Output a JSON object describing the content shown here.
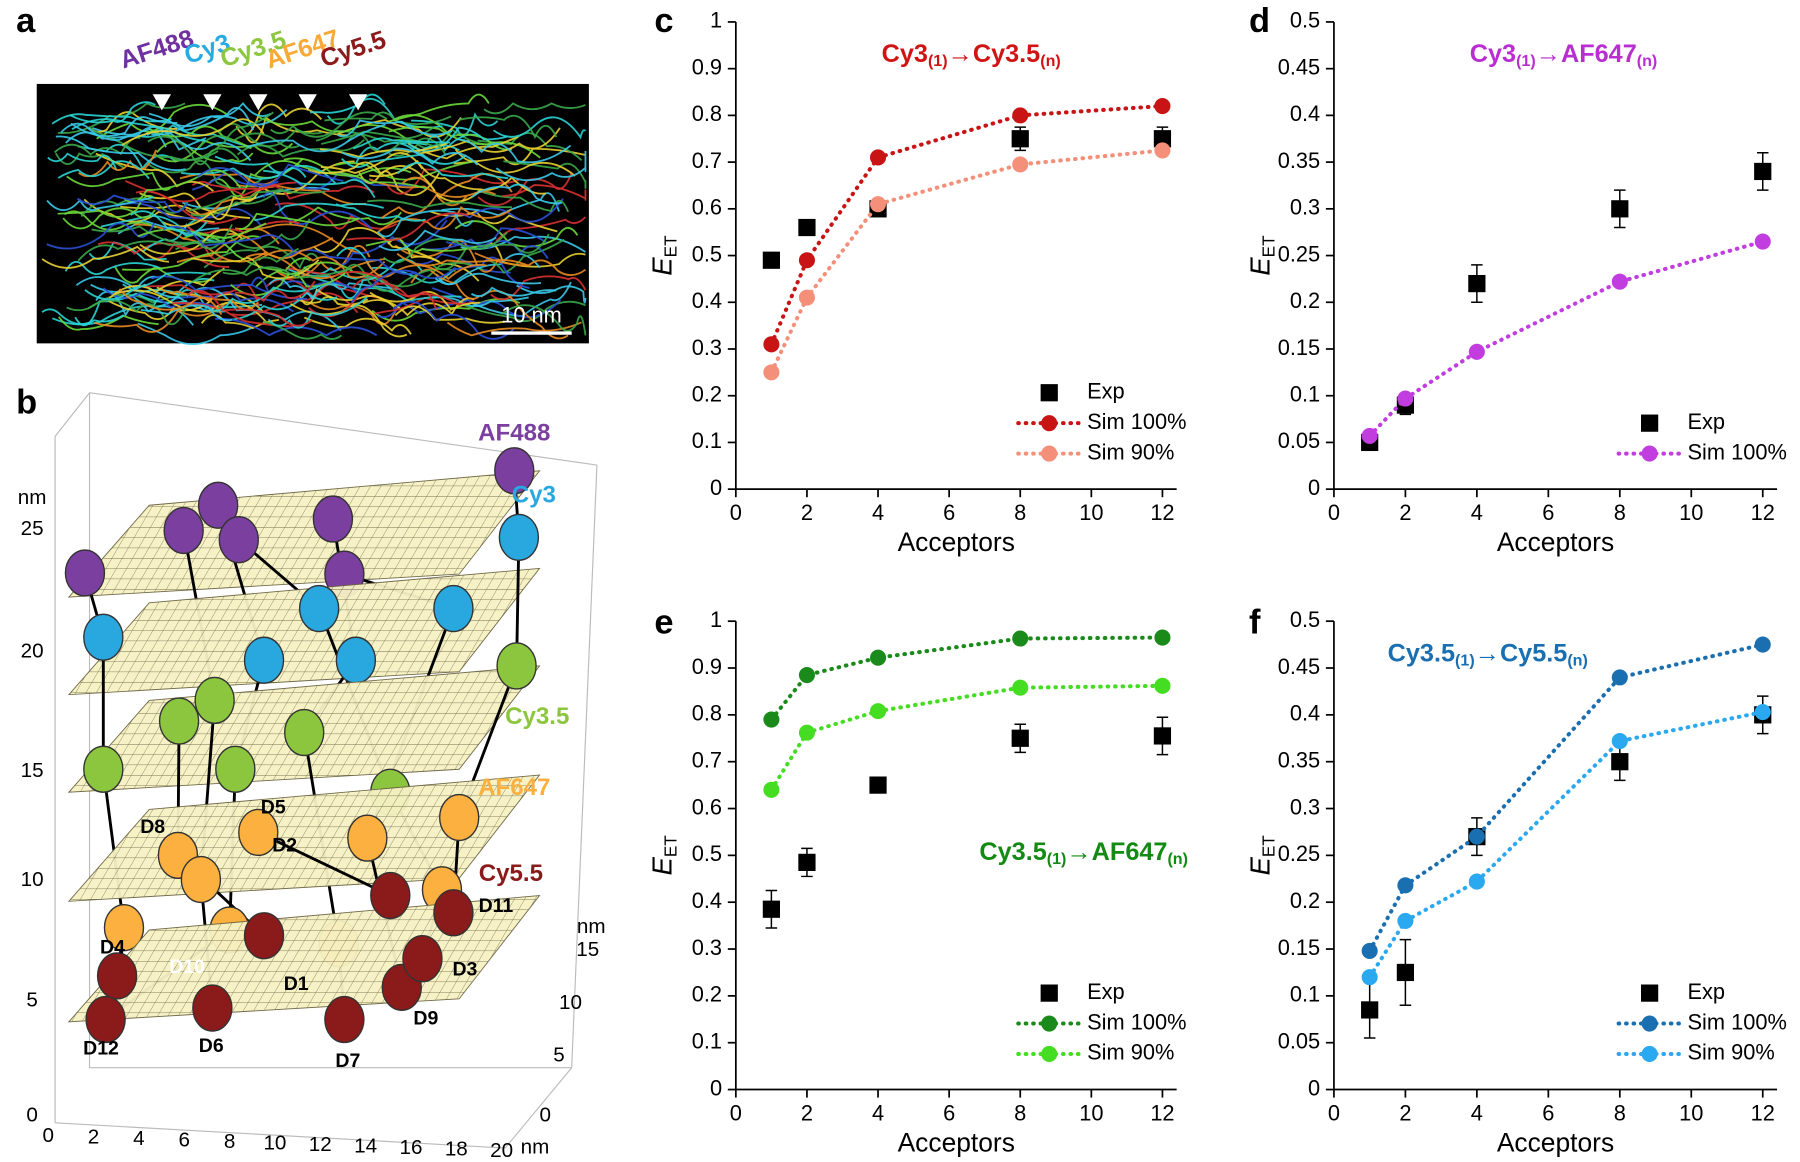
{
  "panel_labels": [
    "a",
    "b",
    "c",
    "d",
    "e",
    "f"
  ],
  "panel_a": {
    "dyes": [
      {
        "label": "AF488",
        "color": "#7030a0"
      },
      {
        "label": "Cy3",
        "color": "#29abe2"
      },
      {
        "label": "Cy3.5",
        "color": "#8dc63f"
      },
      {
        "label": "AF647",
        "color": "#f9a936"
      },
      {
        "label": "Cy5.5",
        "color": "#8b1a1a"
      }
    ],
    "scale_bar": "10 nm"
  },
  "panel_b": {
    "z_unit": "nm",
    "z_ticks": [
      25,
      20,
      15,
      10,
      5,
      0
    ],
    "x_unit": "nm",
    "x_ticks": [
      0,
      2,
      4,
      6,
      8,
      10,
      12,
      14,
      16,
      18,
      20
    ],
    "y_unit": "nm",
    "y_ticks": [
      15,
      10,
      5,
      0
    ],
    "dye_labels": [
      {
        "label": "AF488",
        "color": "#7b3fa0"
      },
      {
        "label": "Cy3",
        "color": "#29a8e0"
      },
      {
        "label": "Cy3.5",
        "color": "#8cc63f"
      },
      {
        "label": "AF647",
        "color": "#fbb040"
      },
      {
        "label": "Cy5.5",
        "color": "#8b1a1a"
      }
    ],
    "donor_labels": [
      "D1",
      "D2",
      "D3",
      "D4",
      "D5",
      "D6",
      "D7",
      "D8",
      "D9",
      "D10",
      "D11",
      "D12"
    ]
  },
  "chart_data": [
    {
      "type": "line",
      "title": [
        "Cy3",
        "(1)",
        "→Cy3.5",
        "(n)"
      ],
      "title_color": "#d01414",
      "xlabel": "Acceptors",
      "ylabel": [
        "E",
        "ET"
      ],
      "x": [
        1,
        2,
        4,
        8,
        12
      ],
      "xlim": [
        0,
        12.4
      ],
      "xticks": [
        0,
        2,
        4,
        6,
        8,
        10,
        12
      ],
      "ylim": [
        0,
        1
      ],
      "yticks": [
        0,
        0.1,
        0.2,
        0.3,
        0.4,
        0.5,
        0.6,
        0.7,
        0.8,
        0.9,
        1
      ],
      "legend": "lower right",
      "series": [
        {
          "name": "Exp",
          "color": "#000000",
          "marker": "square",
          "values": [
            0.49,
            0.56,
            0.6,
            0.75,
            0.75
          ],
          "errors": [
            0.015,
            0.01,
            0.015,
            0.025,
            0.025
          ]
        },
        {
          "name": "Sim 100%",
          "color": "#c81414",
          "marker": "circle",
          "values": [
            0.31,
            0.49,
            0.71,
            0.8,
            0.82
          ]
        },
        {
          "name": "Sim 90%",
          "color": "#f4907a",
          "marker": "circle",
          "values": [
            0.25,
            0.41,
            0.61,
            0.695,
            0.725
          ]
        }
      ]
    },
    {
      "type": "line",
      "title": [
        "Cy3",
        "(1)",
        "→AF647",
        "(n)"
      ],
      "title_color": "#b82ed0",
      "xlabel": "Acceptors",
      "ylabel": [
        "E",
        "ET"
      ],
      "x": [
        1,
        2,
        4,
        8,
        12
      ],
      "xlim": [
        0,
        12.4
      ],
      "xticks": [
        0,
        2,
        4,
        6,
        8,
        10,
        12
      ],
      "ylim": [
        0,
        0.5
      ],
      "yticks": [
        0,
        0.05,
        0.1,
        0.15,
        0.2,
        0.25,
        0.3,
        0.35,
        0.4,
        0.45,
        0.5
      ],
      "legend": "lower right",
      "series": [
        {
          "name": "Exp",
          "color": "#000000",
          "marker": "square",
          "values": [
            0.05,
            0.09,
            0.22,
            0.3,
            0.34
          ],
          "errors": [
            0.005,
            0.01,
            0.02,
            0.02,
            0.02
          ]
        },
        {
          "name": "Sim 100%",
          "color": "#c23de0",
          "marker": "circle",
          "values": [
            0.057,
            0.097,
            0.147,
            0.222,
            0.265
          ]
        }
      ]
    },
    {
      "type": "line",
      "title": [
        "Cy3.5",
        "(1)",
        "→AF647",
        "(n)"
      ],
      "title_color": "#138a13",
      "xlabel": "Acceptors",
      "ylabel": [
        "E",
        "ET"
      ],
      "x": [
        1,
        2,
        4,
        8,
        12
      ],
      "xlim": [
        0,
        12.4
      ],
      "xticks": [
        0,
        2,
        4,
        6,
        8,
        10,
        12
      ],
      "ylim": [
        0,
        1
      ],
      "yticks": [
        0,
        0.1,
        0.2,
        0.3,
        0.4,
        0.5,
        0.6,
        0.7,
        0.8,
        0.9,
        1
      ],
      "legend": "lower right",
      "series": [
        {
          "name": "Exp",
          "color": "#000000",
          "marker": "square",
          "values": [
            0.385,
            0.485,
            0.65,
            0.75,
            0.755
          ],
          "errors": [
            0.04,
            0.03,
            0.015,
            0.03,
            0.04
          ]
        },
        {
          "name": "Sim 100%",
          "color": "#1a8a1a",
          "marker": "circle",
          "values": [
            0.79,
            0.885,
            0.922,
            0.963,
            0.965
          ]
        },
        {
          "name": "Sim 90%",
          "color": "#44dd22",
          "marker": "circle",
          "values": [
            0.64,
            0.762,
            0.808,
            0.858,
            0.862
          ]
        }
      ]
    },
    {
      "type": "line",
      "title": [
        "Cy3.5",
        "(1)",
        "→Cy5.5",
        "(n)"
      ],
      "title_color": "#1a6fb0",
      "xlabel": "Acceptors",
      "ylabel": [
        "E",
        "ET"
      ],
      "x": [
        1,
        2,
        4,
        8,
        12
      ],
      "xlim": [
        0,
        12.4
      ],
      "xticks": [
        0,
        2,
        4,
        6,
        8,
        10,
        12
      ],
      "ylim": [
        0,
        0.5
      ],
      "yticks": [
        0,
        0.05,
        0.1,
        0.15,
        0.2,
        0.25,
        0.3,
        0.35,
        0.4,
        0.45,
        0.5
      ],
      "legend": "lower right",
      "series": [
        {
          "name": "Exp",
          "color": "#000000",
          "marker": "square",
          "values": [
            0.085,
            0.125,
            0.27,
            0.35,
            0.4
          ],
          "errors": [
            0.03,
            0.035,
            0.02,
            0.02,
            0.02
          ]
        },
        {
          "name": "Sim 100%",
          "color": "#1a6fb0",
          "marker": "circle",
          "values": [
            0.148,
            0.218,
            0.27,
            0.44,
            0.475
          ]
        },
        {
          "name": "Sim 90%",
          "color": "#2aa8f0",
          "marker": "circle",
          "values": [
            0.12,
            0.18,
            0.222,
            0.372,
            0.403
          ]
        }
      ]
    }
  ]
}
